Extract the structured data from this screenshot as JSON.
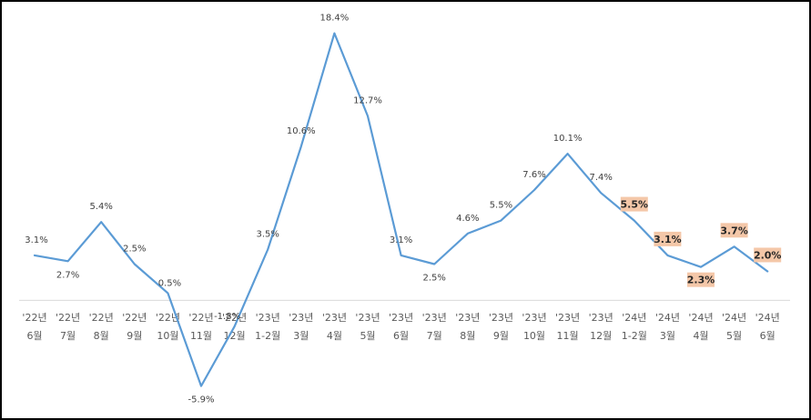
{
  "chart_data": {
    "type": "line",
    "title": "",
    "xlabel": "",
    "ylabel": "",
    "grid": false,
    "legend": "none",
    "categories": [
      [
        "'22년",
        "6월"
      ],
      [
        "'22년",
        "7월"
      ],
      [
        "'22년",
        "8월"
      ],
      [
        "'22년",
        "9월"
      ],
      [
        "'22년",
        "10월"
      ],
      [
        "'22년",
        "11월"
      ],
      [
        "'22년",
        "12월"
      ],
      [
        "'23년",
        "1-2월"
      ],
      [
        "'23년",
        "3월"
      ],
      [
        "'23년",
        "4월"
      ],
      [
        "'23년",
        "5월"
      ],
      [
        "'23년",
        "6월"
      ],
      [
        "'23년",
        "7월"
      ],
      [
        "'23년",
        "8월"
      ],
      [
        "'23년",
        "9월"
      ],
      [
        "'23년",
        "10월"
      ],
      [
        "'23년",
        "11월"
      ],
      [
        "'23년",
        "12월"
      ],
      [
        "'24년",
        "1-2월"
      ],
      [
        "'24년",
        "3월"
      ],
      [
        "'24년",
        "4월"
      ],
      [
        "'24년",
        "5월"
      ],
      [
        "'24년",
        "6월"
      ]
    ],
    "series": [
      {
        "values": [
          3.1,
          2.7,
          5.4,
          2.5,
          0.5,
          -5.9,
          -1.8,
          3.5,
          10.6,
          18.4,
          12.7,
          3.1,
          2.5,
          4.6,
          5.5,
          7.6,
          10.1,
          7.4,
          5.5,
          3.1,
          2.3,
          3.7,
          2.0
        ],
        "labels": [
          "3.1%",
          "2.7%",
          "5.4%",
          "2.5%",
          "0.5%",
          "-5.9%",
          "-1.8%",
          "3.5%",
          "10.6%",
          "18.4%",
          "12.7%",
          "3.1%",
          "2.5%",
          "4.6%",
          "5.5%",
          "7.6%",
          "10.1%",
          "7.4%",
          "5.5%",
          "3.1%",
          "2.3%",
          "3.7%",
          "2.0%"
        ],
        "highlighted": [
          false,
          false,
          false,
          false,
          false,
          false,
          false,
          false,
          false,
          false,
          false,
          false,
          false,
          false,
          false,
          false,
          false,
          false,
          true,
          true,
          true,
          true,
          true
        ],
        "color": "#5b9bd5"
      }
    ],
    "ylim": [
      -6.8,
      19.5
    ],
    "colors": {
      "line": "#5b9bd5",
      "axis": "#d9d9d9",
      "highlight_fill": "#f4c7a8",
      "tick_text": "#595959"
    }
  }
}
